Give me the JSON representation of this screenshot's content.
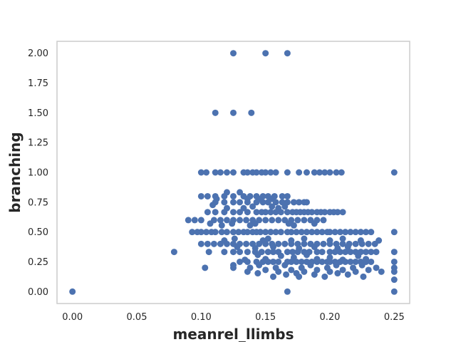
{
  "chart_data": {
    "type": "scatter",
    "title": "",
    "xlabel": "meanrel_llimbs",
    "ylabel": "branching",
    "xlim": [
      -0.012,
      0.262
    ],
    "ylim": [
      -0.1,
      2.1
    ],
    "grid": false,
    "color": "#4c72b0",
    "x_ticks": [
      "0.00",
      "0.05",
      "0.10",
      "0.15",
      "0.20",
      "0.25"
    ],
    "y_ticks": [
      "0.00",
      "0.25",
      "0.50",
      "0.75",
      "1.00",
      "1.25",
      "1.50",
      "1.75",
      "2.00"
    ],
    "points": [
      [
        0.0,
        0.0
      ],
      [
        0.079,
        0.333
      ],
      [
        0.167,
        0.0
      ],
      [
        0.25,
        0.0
      ],
      [
        0.125,
        2.0
      ],
      [
        0.15,
        2.0
      ],
      [
        0.167,
        2.0
      ],
      [
        0.111,
        1.5
      ],
      [
        0.125,
        1.5
      ],
      [
        0.139,
        1.5
      ],
      [
        0.1,
        1.0
      ],
      [
        0.104,
        1.0
      ],
      [
        0.111,
        1.0
      ],
      [
        0.115,
        1.0
      ],
      [
        0.12,
        1.0
      ],
      [
        0.125,
        1.0
      ],
      [
        0.133,
        1.0
      ],
      [
        0.136,
        1.0
      ],
      [
        0.14,
        1.0
      ],
      [
        0.143,
        1.0
      ],
      [
        0.147,
        1.0
      ],
      [
        0.15,
        1.0
      ],
      [
        0.154,
        1.0
      ],
      [
        0.158,
        1.0
      ],
      [
        0.167,
        1.0
      ],
      [
        0.176,
        1.0
      ],
      [
        0.182,
        1.0
      ],
      [
        0.188,
        1.0
      ],
      [
        0.192,
        1.0
      ],
      [
        0.196,
        1.0
      ],
      [
        0.2,
        1.0
      ],
      [
        0.205,
        1.0
      ],
      [
        0.209,
        1.0
      ],
      [
        0.25,
        1.0
      ],
      [
        0.1,
        0.8
      ],
      [
        0.105,
        0.8
      ],
      [
        0.111,
        0.8
      ],
      [
        0.118,
        0.8
      ],
      [
        0.125,
        0.8
      ],
      [
        0.133,
        0.8
      ],
      [
        0.138,
        0.8
      ],
      [
        0.143,
        0.8
      ],
      [
        0.148,
        0.8
      ],
      [
        0.152,
        0.8
      ],
      [
        0.157,
        0.8
      ],
      [
        0.163,
        0.8
      ],
      [
        0.167,
        0.8
      ],
      [
        0.12,
        0.833
      ],
      [
        0.13,
        0.833
      ],
      [
        0.112,
        0.778
      ],
      [
        0.136,
        0.778
      ],
      [
        0.146,
        0.778
      ],
      [
        0.155,
        0.778
      ],
      [
        0.111,
        0.75
      ],
      [
        0.118,
        0.75
      ],
      [
        0.125,
        0.75
      ],
      [
        0.13,
        0.75
      ],
      [
        0.136,
        0.75
      ],
      [
        0.143,
        0.75
      ],
      [
        0.148,
        0.75
      ],
      [
        0.152,
        0.75
      ],
      [
        0.158,
        0.75
      ],
      [
        0.163,
        0.75
      ],
      [
        0.167,
        0.75
      ],
      [
        0.172,
        0.75
      ],
      [
        0.176,
        0.75
      ],
      [
        0.18,
        0.75
      ],
      [
        0.182,
        0.75
      ],
      [
        0.109,
        0.727
      ],
      [
        0.14,
        0.714
      ],
      [
        0.155,
        0.714
      ],
      [
        0.165,
        0.714
      ],
      [
        0.12,
        0.7
      ],
      [
        0.133,
        0.7
      ],
      [
        0.16,
        0.7
      ],
      [
        0.105,
        0.667
      ],
      [
        0.111,
        0.667
      ],
      [
        0.118,
        0.667
      ],
      [
        0.125,
        0.667
      ],
      [
        0.13,
        0.667
      ],
      [
        0.136,
        0.667
      ],
      [
        0.143,
        0.667
      ],
      [
        0.147,
        0.667
      ],
      [
        0.15,
        0.667
      ],
      [
        0.154,
        0.667
      ],
      [
        0.158,
        0.667
      ],
      [
        0.162,
        0.667
      ],
      [
        0.167,
        0.667
      ],
      [
        0.171,
        0.667
      ],
      [
        0.174,
        0.667
      ],
      [
        0.177,
        0.667
      ],
      [
        0.18,
        0.667
      ],
      [
        0.183,
        0.667
      ],
      [
        0.186,
        0.667
      ],
      [
        0.19,
        0.667
      ],
      [
        0.193,
        0.667
      ],
      [
        0.196,
        0.667
      ],
      [
        0.2,
        0.667
      ],
      [
        0.203,
        0.667
      ],
      [
        0.206,
        0.667
      ],
      [
        0.21,
        0.667
      ],
      [
        0.09,
        0.6
      ],
      [
        0.095,
        0.6
      ],
      [
        0.1,
        0.6
      ],
      [
        0.11,
        0.6
      ],
      [
        0.115,
        0.6
      ],
      [
        0.12,
        0.6
      ],
      [
        0.125,
        0.6
      ],
      [
        0.13,
        0.6
      ],
      [
        0.135,
        0.6
      ],
      [
        0.14,
        0.6
      ],
      [
        0.145,
        0.6
      ],
      [
        0.15,
        0.6
      ],
      [
        0.155,
        0.6
      ],
      [
        0.16,
        0.6
      ],
      [
        0.165,
        0.6
      ],
      [
        0.17,
        0.6
      ],
      [
        0.175,
        0.6
      ],
      [
        0.18,
        0.6
      ],
      [
        0.185,
        0.6
      ],
      [
        0.19,
        0.6
      ],
      [
        0.195,
        0.6
      ],
      [
        0.107,
        0.571
      ],
      [
        0.124,
        0.571
      ],
      [
        0.142,
        0.571
      ],
      [
        0.168,
        0.571
      ],
      [
        0.188,
        0.571
      ],
      [
        0.116,
        0.556
      ],
      [
        0.138,
        0.556
      ],
      [
        0.172,
        0.556
      ],
      [
        0.093,
        0.5
      ],
      [
        0.097,
        0.5
      ],
      [
        0.1,
        0.5
      ],
      [
        0.104,
        0.5
      ],
      [
        0.108,
        0.5
      ],
      [
        0.111,
        0.5
      ],
      [
        0.116,
        0.5
      ],
      [
        0.12,
        0.5
      ],
      [
        0.125,
        0.5
      ],
      [
        0.129,
        0.5
      ],
      [
        0.133,
        0.5
      ],
      [
        0.136,
        0.5
      ],
      [
        0.14,
        0.5
      ],
      [
        0.143,
        0.5
      ],
      [
        0.146,
        0.5
      ],
      [
        0.15,
        0.5
      ],
      [
        0.154,
        0.5
      ],
      [
        0.158,
        0.5
      ],
      [
        0.162,
        0.5
      ],
      [
        0.167,
        0.5
      ],
      [
        0.17,
        0.5
      ],
      [
        0.174,
        0.5
      ],
      [
        0.178,
        0.5
      ],
      [
        0.182,
        0.5
      ],
      [
        0.186,
        0.5
      ],
      [
        0.19,
        0.5
      ],
      [
        0.194,
        0.5
      ],
      [
        0.198,
        0.5
      ],
      [
        0.2,
        0.5
      ],
      [
        0.204,
        0.5
      ],
      [
        0.208,
        0.5
      ],
      [
        0.212,
        0.5
      ],
      [
        0.216,
        0.5
      ],
      [
        0.22,
        0.5
      ],
      [
        0.224,
        0.5
      ],
      [
        0.228,
        0.5
      ],
      [
        0.232,
        0.5
      ],
      [
        0.25,
        0.5
      ],
      [
        0.126,
        0.444
      ],
      [
        0.152,
        0.444
      ],
      [
        0.18,
        0.444
      ],
      [
        0.21,
        0.444
      ],
      [
        0.118,
        0.429
      ],
      [
        0.148,
        0.429
      ],
      [
        0.17,
        0.429
      ],
      [
        0.2,
        0.429
      ],
      [
        0.224,
        0.429
      ],
      [
        0.238,
        0.429
      ],
      [
        0.1,
        0.4
      ],
      [
        0.105,
        0.4
      ],
      [
        0.11,
        0.4
      ],
      [
        0.115,
        0.4
      ],
      [
        0.12,
        0.4
      ],
      [
        0.125,
        0.4
      ],
      [
        0.13,
        0.4
      ],
      [
        0.135,
        0.4
      ],
      [
        0.14,
        0.4
      ],
      [
        0.145,
        0.4
      ],
      [
        0.15,
        0.4
      ],
      [
        0.155,
        0.4
      ],
      [
        0.16,
        0.4
      ],
      [
        0.165,
        0.4
      ],
      [
        0.17,
        0.4
      ],
      [
        0.175,
        0.4
      ],
      [
        0.18,
        0.4
      ],
      [
        0.185,
        0.4
      ],
      [
        0.19,
        0.4
      ],
      [
        0.195,
        0.4
      ],
      [
        0.2,
        0.4
      ],
      [
        0.205,
        0.4
      ],
      [
        0.21,
        0.4
      ],
      [
        0.215,
        0.4
      ],
      [
        0.22,
        0.4
      ],
      [
        0.225,
        0.4
      ],
      [
        0.23,
        0.4
      ],
      [
        0.235,
        0.4
      ],
      [
        0.128,
        0.375
      ],
      [
        0.156,
        0.375
      ],
      [
        0.188,
        0.375
      ],
      [
        0.214,
        0.375
      ],
      [
        0.142,
        0.364
      ],
      [
        0.176,
        0.364
      ],
      [
        0.206,
        0.364
      ],
      [
        0.106,
        0.333
      ],
      [
        0.118,
        0.333
      ],
      [
        0.125,
        0.333
      ],
      [
        0.13,
        0.333
      ],
      [
        0.136,
        0.333
      ],
      [
        0.142,
        0.333
      ],
      [
        0.147,
        0.333
      ],
      [
        0.152,
        0.333
      ],
      [
        0.156,
        0.333
      ],
      [
        0.16,
        0.333
      ],
      [
        0.167,
        0.333
      ],
      [
        0.171,
        0.333
      ],
      [
        0.175,
        0.333
      ],
      [
        0.18,
        0.333
      ],
      [
        0.184,
        0.333
      ],
      [
        0.19,
        0.333
      ],
      [
        0.194,
        0.333
      ],
      [
        0.2,
        0.333
      ],
      [
        0.204,
        0.333
      ],
      [
        0.208,
        0.333
      ],
      [
        0.212,
        0.333
      ],
      [
        0.216,
        0.333
      ],
      [
        0.22,
        0.333
      ],
      [
        0.224,
        0.333
      ],
      [
        0.228,
        0.333
      ],
      [
        0.232,
        0.333
      ],
      [
        0.236,
        0.333
      ],
      [
        0.25,
        0.333
      ],
      [
        0.144,
        0.308
      ],
      [
        0.182,
        0.308
      ],
      [
        0.222,
        0.3
      ],
      [
        0.162,
        0.3
      ],
      [
        0.2,
        0.286
      ],
      [
        0.172,
        0.286
      ],
      [
        0.15,
        0.273
      ],
      [
        0.19,
        0.273
      ],
      [
        0.228,
        0.273
      ],
      [
        0.134,
        0.267
      ],
      [
        0.21,
        0.267
      ],
      [
        0.13,
        0.25
      ],
      [
        0.136,
        0.25
      ],
      [
        0.143,
        0.25
      ],
      [
        0.148,
        0.25
      ],
      [
        0.152,
        0.25
      ],
      [
        0.156,
        0.25
      ],
      [
        0.16,
        0.25
      ],
      [
        0.167,
        0.25
      ],
      [
        0.17,
        0.25
      ],
      [
        0.174,
        0.25
      ],
      [
        0.178,
        0.25
      ],
      [
        0.182,
        0.25
      ],
      [
        0.186,
        0.25
      ],
      [
        0.19,
        0.25
      ],
      [
        0.194,
        0.25
      ],
      [
        0.198,
        0.25
      ],
      [
        0.2,
        0.25
      ],
      [
        0.204,
        0.25
      ],
      [
        0.208,
        0.25
      ],
      [
        0.212,
        0.25
      ],
      [
        0.216,
        0.25
      ],
      [
        0.22,
        0.25
      ],
      [
        0.224,
        0.25
      ],
      [
        0.228,
        0.25
      ],
      [
        0.232,
        0.25
      ],
      [
        0.25,
        0.25
      ],
      [
        0.125,
        0.222
      ],
      [
        0.145,
        0.222
      ],
      [
        0.165,
        0.222
      ],
      [
        0.185,
        0.222
      ],
      [
        0.205,
        0.222
      ],
      [
        0.225,
        0.222
      ],
      [
        0.138,
        0.2
      ],
      [
        0.158,
        0.2
      ],
      [
        0.178,
        0.2
      ],
      [
        0.198,
        0.2
      ],
      [
        0.218,
        0.2
      ],
      [
        0.236,
        0.2
      ],
      [
        0.103,
        0.2
      ],
      [
        0.125,
        0.2
      ],
      [
        0.15,
        0.182
      ],
      [
        0.17,
        0.182
      ],
      [
        0.19,
        0.182
      ],
      [
        0.21,
        0.182
      ],
      [
        0.23,
        0.182
      ],
      [
        0.25,
        0.2
      ],
      [
        0.136,
        0.167
      ],
      [
        0.16,
        0.167
      ],
      [
        0.18,
        0.167
      ],
      [
        0.2,
        0.167
      ],
      [
        0.22,
        0.167
      ],
      [
        0.24,
        0.167
      ],
      [
        0.25,
        0.167
      ],
      [
        0.144,
        0.154
      ],
      [
        0.174,
        0.154
      ],
      [
        0.206,
        0.154
      ],
      [
        0.188,
        0.143
      ],
      [
        0.214,
        0.143
      ],
      [
        0.166,
        0.143
      ],
      [
        0.156,
        0.125
      ],
      [
        0.176,
        0.125
      ],
      [
        0.196,
        0.125
      ],
      [
        0.226,
        0.125
      ],
      [
        0.25,
        0.1
      ]
    ]
  }
}
